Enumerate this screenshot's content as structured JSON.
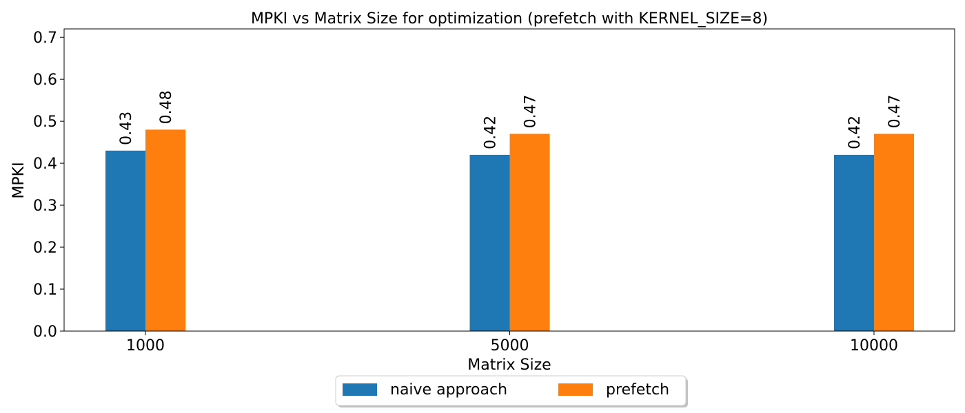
{
  "chart_data": {
    "type": "bar",
    "title": "MPKI vs Matrix Size for optimization (prefetch with KERNEL_SIZE=8)",
    "xlabel": "Matrix Size",
    "ylabel": "MPKI",
    "categories": [
      "1000",
      "5000",
      "10000"
    ],
    "series": [
      {
        "name": "naive approach",
        "color": "#1f77b4",
        "values": [
          0.43,
          0.42,
          0.42
        ]
      },
      {
        "name": "prefetch",
        "color": "#ff7f0e",
        "values": [
          0.48,
          0.47,
          0.47
        ]
      }
    ],
    "ylim": [
      0,
      0.72
    ],
    "yticks": [
      0.0,
      0.1,
      0.2,
      0.3,
      0.4,
      0.5,
      0.6,
      0.7
    ],
    "grid": false,
    "legend_position": "bottom-center"
  }
}
